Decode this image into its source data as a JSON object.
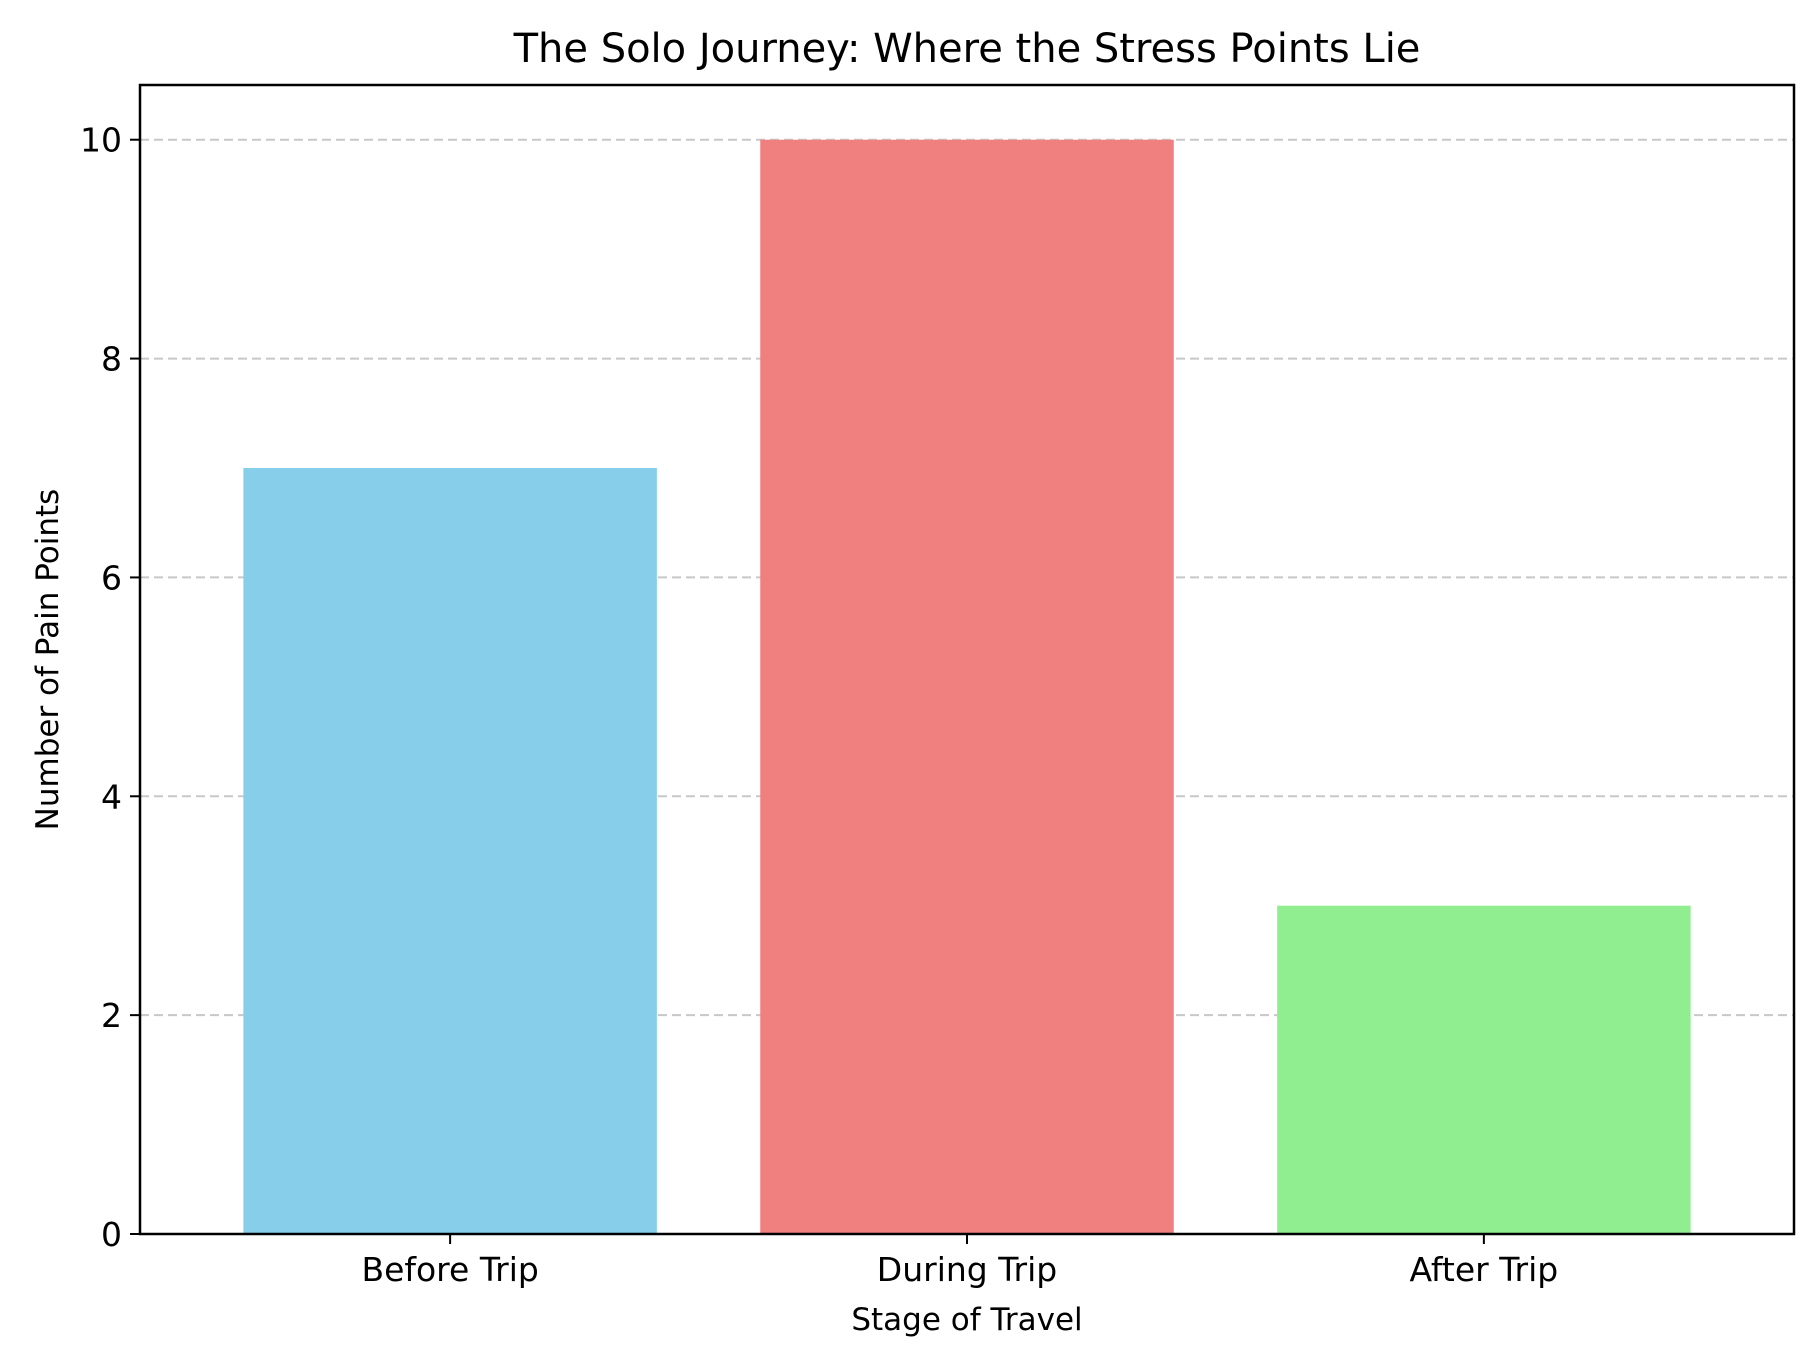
{
  "chart_data": {
    "type": "bar",
    "title": "The Solo Journey: Where the Stress Points Lie",
    "xlabel": "Stage of Travel",
    "ylabel": "Number of Pain Points",
    "categories": [
      "Before Trip",
      "During Trip",
      "After Trip"
    ],
    "values": [
      7,
      10,
      3
    ],
    "colors": [
      "#87CEEB",
      "#F08080",
      "#90EE90"
    ],
    "ylim": [
      0,
      10.5
    ],
    "yticks": [
      0,
      2,
      4,
      6,
      8,
      10
    ],
    "grid": "y-dashed",
    "legend": "none"
  }
}
